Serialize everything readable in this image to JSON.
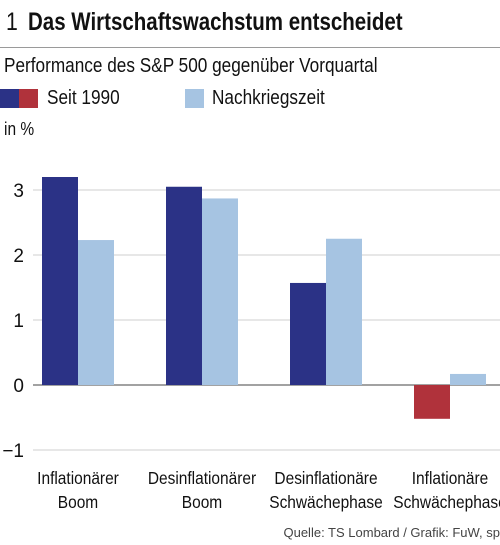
{
  "figure": {
    "number": "1",
    "title": "Das Wirtschaftswachstum entscheidet",
    "source": "Quelle: TS Lombard / Grafik: FuW, sp"
  },
  "chart_data": {
    "type": "bar",
    "title": "Performance des S&P 500 gegenüber Vorquartal",
    "ylabel": "in %",
    "ylim": [
      -1,
      3.6
    ],
    "yticks": [
      -1,
      0,
      1,
      2,
      3
    ],
    "ytick_labels": [
      "−1",
      "0",
      "1",
      "2",
      "3"
    ],
    "grid": true,
    "legend_position": "top-left",
    "categories": [
      [
        "Inflationärer",
        "Boom"
      ],
      [
        "Desinflationärer",
        "Boom"
      ],
      [
        "Desinflationäre",
        "Schwächephase"
      ],
      [
        "Inflationäre",
        "Schwächephase"
      ]
    ],
    "series": [
      {
        "name": "Seit 1990",
        "values": [
          3.2,
          3.05,
          1.57,
          -0.52
        ],
        "color": "#2b3286",
        "negative_color": "#b0323b"
      },
      {
        "name": "Nachkriegszeit",
        "values": [
          2.23,
          2.87,
          2.25,
          0.17
        ],
        "color": "#a6c4e2"
      }
    ]
  }
}
